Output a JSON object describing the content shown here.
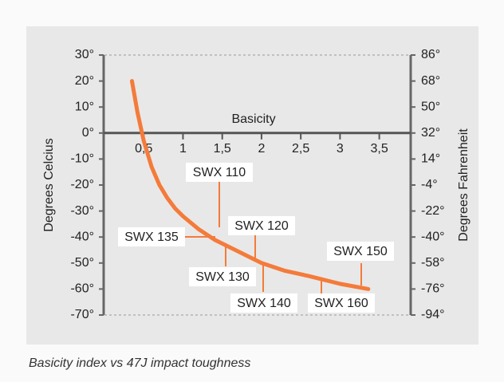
{
  "chart_data": {
    "type": "line",
    "caption": "Basicity index vs 47J impact toughness",
    "xlabel": "Basicity",
    "ylabel": "Degrees Celcius",
    "y2label": "Degrees Fahrenheit",
    "xlim": [
      0,
      3.9
    ],
    "xticks": [
      {
        "value": 0.5,
        "label": "0,5"
      },
      1,
      {
        "value": 1.5,
        "label": "1,5"
      },
      2,
      {
        "value": 2.5,
        "label": "2,5"
      },
      3,
      {
        "value": 3.5,
        "label": "3,5"
      }
    ],
    "ylim": [
      -70,
      30
    ],
    "yticks": [
      {
        "value": 30,
        "label": "30°"
      },
      {
        "value": 20,
        "label": "20°"
      },
      {
        "value": 10,
        "label": "10°"
      },
      {
        "value": 0,
        "label": "0°"
      },
      {
        "value": -10,
        "label": "-10°"
      },
      {
        "value": -20,
        "label": "-20°"
      },
      {
        "value": -30,
        "label": "-30°"
      },
      {
        "value": -40,
        "label": "-40°"
      },
      {
        "value": -50,
        "label": "-50°"
      },
      {
        "value": -60,
        "label": "-60°"
      },
      {
        "value": -70,
        "label": "-70°"
      }
    ],
    "y2lim": [
      -94,
      86
    ],
    "y2ticks": [
      {
        "value": 86,
        "label": "86°"
      },
      {
        "value": 68,
        "label": "68°"
      },
      {
        "value": 50,
        "label": "50°"
      },
      {
        "value": 32,
        "label": "32°"
      },
      {
        "value": 14,
        "label": "14°"
      },
      {
        "value": -4,
        "label": "-4°"
      },
      {
        "value": -22,
        "label": "-22°"
      },
      {
        "value": -40,
        "label": "-40°"
      },
      {
        "value": -58,
        "label": "-58°"
      },
      {
        "value": -76,
        "label": "-76°"
      },
      {
        "value": -94,
        "label": "-94°"
      }
    ],
    "series": [
      {
        "color": "#f47b3a",
        "x": [
          0.35,
          0.42,
          0.5,
          0.6,
          0.7,
          0.8,
          0.9,
          1.0,
          1.2,
          1.4,
          1.6,
          1.8,
          2.0,
          2.3,
          2.6,
          3.0,
          3.36
        ],
        "values": [
          20,
          8,
          -3,
          -13,
          -20,
          -25,
          -29,
          -32,
          -37,
          -41,
          -44,
          -47,
          -50,
          -53,
          -55,
          -58,
          -60
        ]
      }
    ],
    "annotations": [
      "SWX 110",
      "SWX 135",
      "SWX 120",
      "SWX 130",
      "SWX 140",
      "SWX 160",
      "SWX 150"
    ]
  }
}
